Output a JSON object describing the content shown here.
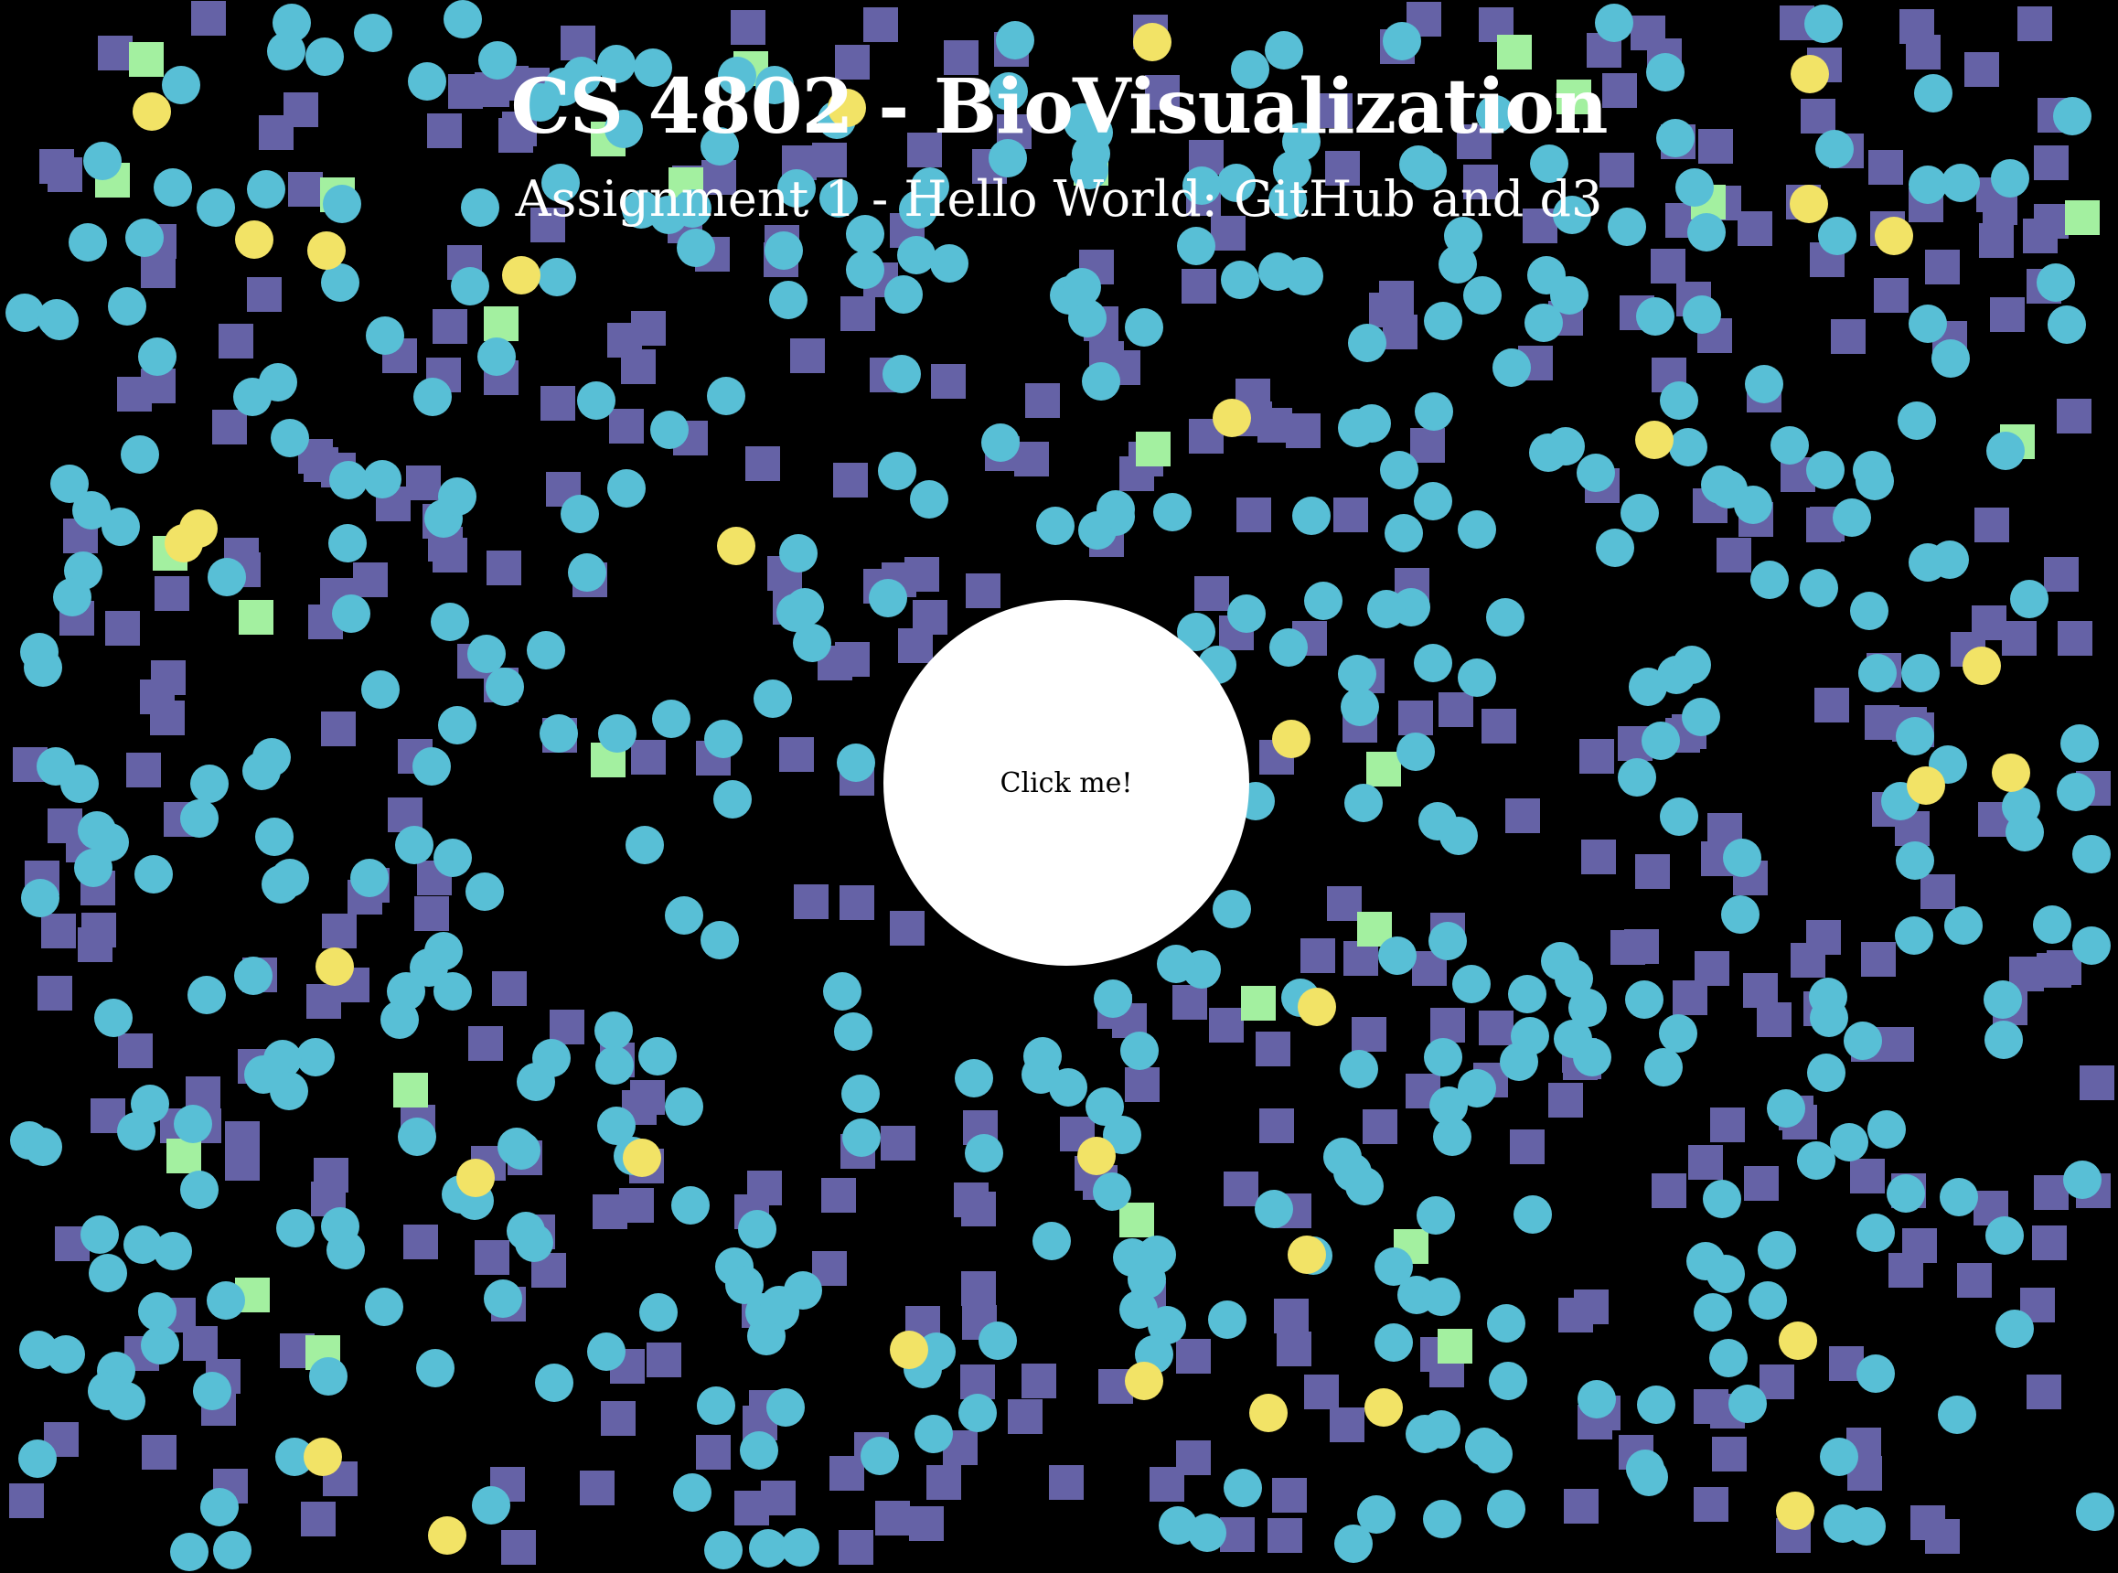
{
  "header": {
    "title": "CS 4802 - BioVisualization",
    "subtitle": "Assignment 1 - Hello World: GitHub and d3"
  },
  "center_button": {
    "label": "Click me!"
  },
  "colors": {
    "background": "#000000",
    "square": "#6562a6",
    "circle": "#58bfd6",
    "yellow_circle": "#f2e366",
    "green_square": "#a3f0a0",
    "center_button": "#ffffff"
  }
}
